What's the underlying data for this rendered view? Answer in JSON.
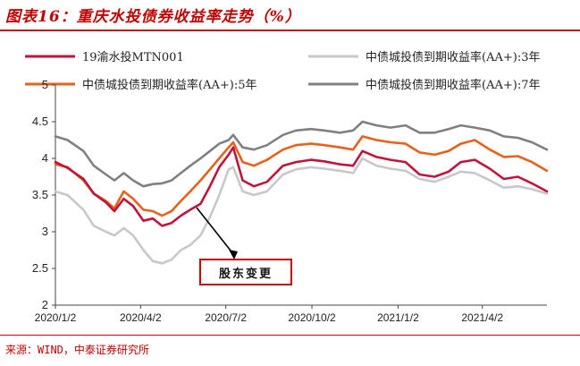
{
  "title": "图表16：重庆水投债券收益率走势（%）",
  "source": "来源：WIND，中泰证券研究所",
  "chart_data": {
    "type": "line",
    "x_ticks": [
      "2020/1/2",
      "2020/4/2",
      "2020/7/2",
      "2020/10/2",
      "2021/1/2",
      "2021/4/2"
    ],
    "x_range": [
      "2020/1/2",
      "2021/6/10"
    ],
    "y_ticks": [
      "2",
      "2.5",
      "3",
      "3.5",
      "4",
      "4.5",
      "5"
    ],
    "ylim": [
      2,
      5
    ],
    "grid": false,
    "legend_position": "top",
    "annotation": "股东变更",
    "series": [
      {
        "name": "19渝水投MTN001",
        "color": "#c0143c",
        "points": [
          [
            "2020/1/2",
            3.95
          ],
          [
            "2020/1/15",
            3.87
          ],
          [
            "2020/2/1",
            3.72
          ],
          [
            "2020/2/12",
            3.52
          ],
          [
            "2020/2/25",
            3.4
          ],
          [
            "2020/3/5",
            3.28
          ],
          [
            "2020/3/15",
            3.45
          ],
          [
            "2020/3/25",
            3.35
          ],
          [
            "2020/4/5",
            3.15
          ],
          [
            "2020/4/15",
            3.18
          ],
          [
            "2020/4/25",
            3.08
          ],
          [
            "2020/5/5",
            3.12
          ],
          [
            "2020/5/15",
            3.22
          ],
          [
            "2020/5/25",
            3.3
          ],
          [
            "2020/6/5",
            3.38
          ],
          [
            "2020/6/15",
            3.62
          ],
          [
            "2020/6/25",
            3.88
          ],
          [
            "2020/7/5",
            4.05
          ],
          [
            "2020/7/10",
            4.15
          ],
          [
            "2020/7/20",
            3.7
          ],
          [
            "2020/8/1",
            3.62
          ],
          [
            "2020/8/15",
            3.68
          ],
          [
            "2020/9/1",
            3.9
          ],
          [
            "2020/9/15",
            3.95
          ],
          [
            "2020/10/1",
            3.98
          ],
          [
            "2020/10/15",
            3.96
          ],
          [
            "2020/11/1",
            3.92
          ],
          [
            "2020/11/15",
            3.9
          ],
          [
            "2020/11/25",
            4.1
          ],
          [
            "2020/12/10",
            4.02
          ],
          [
            "2020/12/25",
            3.98
          ],
          [
            "2021/1/10",
            3.95
          ],
          [
            "2021/1/25",
            3.78
          ],
          [
            "2021/2/10",
            3.75
          ],
          [
            "2021/2/25",
            3.82
          ],
          [
            "2021/3/10",
            3.95
          ],
          [
            "2021/3/25",
            3.98
          ],
          [
            "2021/4/10",
            3.86
          ],
          [
            "2021/4/25",
            3.72
          ],
          [
            "2021/5/10",
            3.75
          ],
          [
            "2021/5/25",
            3.66
          ],
          [
            "2021/6/10",
            3.55
          ]
        ]
      },
      {
        "name": "中债城投债到期收益率(AA+):3年",
        "color": "#c8c8c8",
        "points": [
          [
            "2020/1/2",
            3.55
          ],
          [
            "2020/1/15",
            3.5
          ],
          [
            "2020/2/1",
            3.3
          ],
          [
            "2020/2/12",
            3.08
          ],
          [
            "2020/2/25",
            3.0
          ],
          [
            "2020/3/5",
            2.95
          ],
          [
            "2020/3/15",
            3.05
          ],
          [
            "2020/3/25",
            2.95
          ],
          [
            "2020/4/5",
            2.75
          ],
          [
            "2020/4/15",
            2.6
          ],
          [
            "2020/4/25",
            2.57
          ],
          [
            "2020/5/5",
            2.62
          ],
          [
            "2020/5/15",
            2.75
          ],
          [
            "2020/5/25",
            2.82
          ],
          [
            "2020/6/5",
            2.95
          ],
          [
            "2020/6/15",
            3.2
          ],
          [
            "2020/6/25",
            3.5
          ],
          [
            "2020/7/5",
            3.85
          ],
          [
            "2020/7/10",
            3.88
          ],
          [
            "2020/7/20",
            3.55
          ],
          [
            "2020/8/1",
            3.5
          ],
          [
            "2020/8/15",
            3.55
          ],
          [
            "2020/9/1",
            3.78
          ],
          [
            "2020/9/15",
            3.85
          ],
          [
            "2020/10/1",
            3.88
          ],
          [
            "2020/10/15",
            3.86
          ],
          [
            "2020/11/1",
            3.83
          ],
          [
            "2020/11/15",
            3.8
          ],
          [
            "2020/11/25",
            4.0
          ],
          [
            "2020/12/10",
            3.9
          ],
          [
            "2020/12/25",
            3.86
          ],
          [
            "2021/1/10",
            3.83
          ],
          [
            "2021/1/25",
            3.72
          ],
          [
            "2021/2/10",
            3.68
          ],
          [
            "2021/2/25",
            3.75
          ],
          [
            "2021/3/10",
            3.82
          ],
          [
            "2021/3/25",
            3.8
          ],
          [
            "2021/4/10",
            3.7
          ],
          [
            "2021/4/25",
            3.6
          ],
          [
            "2021/5/10",
            3.62
          ],
          [
            "2021/5/25",
            3.58
          ],
          [
            "2021/6/10",
            3.52
          ]
        ]
      },
      {
        "name": "中债城投债到期收益率(AA+):5年",
        "color": "#e8601a",
        "points": [
          [
            "2020/1/2",
            3.92
          ],
          [
            "2020/1/15",
            3.88
          ],
          [
            "2020/2/1",
            3.7
          ],
          [
            "2020/2/12",
            3.52
          ],
          [
            "2020/2/25",
            3.42
          ],
          [
            "2020/3/5",
            3.32
          ],
          [
            "2020/3/15",
            3.55
          ],
          [
            "2020/3/25",
            3.45
          ],
          [
            "2020/4/5",
            3.3
          ],
          [
            "2020/4/15",
            3.28
          ],
          [
            "2020/4/25",
            3.22
          ],
          [
            "2020/5/5",
            3.28
          ],
          [
            "2020/5/15",
            3.42
          ],
          [
            "2020/5/25",
            3.55
          ],
          [
            "2020/6/5",
            3.7
          ],
          [
            "2020/6/15",
            3.85
          ],
          [
            "2020/6/25",
            4.0
          ],
          [
            "2020/7/5",
            4.15
          ],
          [
            "2020/7/10",
            4.22
          ],
          [
            "2020/7/20",
            3.95
          ],
          [
            "2020/8/1",
            3.9
          ],
          [
            "2020/8/15",
            3.98
          ],
          [
            "2020/9/1",
            4.12
          ],
          [
            "2020/9/15",
            4.18
          ],
          [
            "2020/10/1",
            4.2
          ],
          [
            "2020/10/15",
            4.18
          ],
          [
            "2020/11/1",
            4.15
          ],
          [
            "2020/11/15",
            4.12
          ],
          [
            "2020/11/25",
            4.3
          ],
          [
            "2020/12/10",
            4.25
          ],
          [
            "2020/12/25",
            4.22
          ],
          [
            "2021/1/10",
            4.2
          ],
          [
            "2021/1/25",
            4.08
          ],
          [
            "2021/2/10",
            4.05
          ],
          [
            "2021/2/25",
            4.1
          ],
          [
            "2021/3/10",
            4.2
          ],
          [
            "2021/3/25",
            4.25
          ],
          [
            "2021/4/10",
            4.12
          ],
          [
            "2021/4/25",
            4.02
          ],
          [
            "2021/5/10",
            4.03
          ],
          [
            "2021/5/25",
            3.95
          ],
          [
            "2021/6/10",
            3.83
          ]
        ]
      },
      {
        "name": "中债城投债到期收益率(AA+):7年",
        "color": "#808080",
        "points": [
          [
            "2020/1/2",
            4.3
          ],
          [
            "2020/1/15",
            4.25
          ],
          [
            "2020/2/1",
            4.1
          ],
          [
            "2020/2/12",
            3.9
          ],
          [
            "2020/2/25",
            3.78
          ],
          [
            "2020/3/5",
            3.7
          ],
          [
            "2020/3/15",
            3.8
          ],
          [
            "2020/3/25",
            3.7
          ],
          [
            "2020/4/5",
            3.62
          ],
          [
            "2020/4/15",
            3.65
          ],
          [
            "2020/4/25",
            3.66
          ],
          [
            "2020/5/5",
            3.7
          ],
          [
            "2020/5/15",
            3.8
          ],
          [
            "2020/5/25",
            3.9
          ],
          [
            "2020/6/5",
            4.0
          ],
          [
            "2020/6/15",
            4.1
          ],
          [
            "2020/6/25",
            4.2
          ],
          [
            "2020/7/5",
            4.25
          ],
          [
            "2020/7/10",
            4.32
          ],
          [
            "2020/7/20",
            4.15
          ],
          [
            "2020/8/1",
            4.12
          ],
          [
            "2020/8/15",
            4.18
          ],
          [
            "2020/9/1",
            4.32
          ],
          [
            "2020/9/15",
            4.38
          ],
          [
            "2020/10/1",
            4.4
          ],
          [
            "2020/10/15",
            4.38
          ],
          [
            "2020/11/1",
            4.35
          ],
          [
            "2020/11/15",
            4.38
          ],
          [
            "2020/11/25",
            4.5
          ],
          [
            "2020/12/10",
            4.45
          ],
          [
            "2020/12/25",
            4.42
          ],
          [
            "2021/1/10",
            4.45
          ],
          [
            "2021/1/25",
            4.35
          ],
          [
            "2021/2/10",
            4.35
          ],
          [
            "2021/2/25",
            4.4
          ],
          [
            "2021/3/10",
            4.45
          ],
          [
            "2021/3/25",
            4.42
          ],
          [
            "2021/4/10",
            4.38
          ],
          [
            "2021/4/25",
            4.3
          ],
          [
            "2021/5/10",
            4.28
          ],
          [
            "2021/5/25",
            4.22
          ],
          [
            "2021/6/10",
            4.12
          ]
        ]
      }
    ]
  }
}
